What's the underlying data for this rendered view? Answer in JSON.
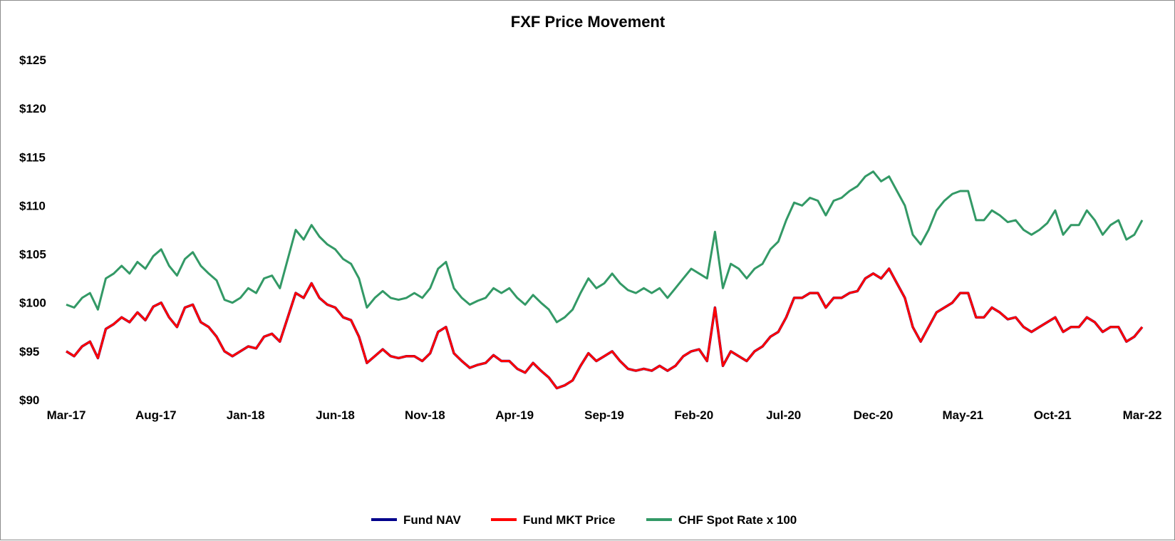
{
  "chart_data": {
    "type": "line",
    "title": "FXF Price Movement",
    "xlabel": "",
    "ylabel": "",
    "ylim": [
      90,
      125
    ],
    "y_ticks": [
      {
        "value": 125,
        "label": "$125"
      },
      {
        "value": 120,
        "label": "$120"
      },
      {
        "value": 115,
        "label": "$115"
      },
      {
        "value": 110,
        "label": "$110"
      },
      {
        "value": 105,
        "label": "$105"
      },
      {
        "value": 100,
        "label": "$100"
      },
      {
        "value": 95,
        "label": "$95"
      },
      {
        "value": 90,
        "label": "$90"
      }
    ],
    "x_ticks": [
      "Mar-17",
      "Aug-17",
      "Jan-18",
      "Jun-18",
      "Nov-18",
      "Apr-19",
      "Sep-19",
      "Feb-20",
      "Jul-20",
      "Dec-20",
      "May-21",
      "Oct-21",
      "Mar-22"
    ],
    "grid": false,
    "legend_position": "bottom",
    "series": [
      {
        "name": "Fund NAV",
        "color": "#00008b",
        "values": [
          95.0,
          94.5,
          95.5,
          96.0,
          94.3,
          97.3,
          97.8,
          98.5,
          98.0,
          99.0,
          98.2,
          99.6,
          100.0,
          98.5,
          97.5,
          99.5,
          99.8,
          98.0,
          97.5,
          96.5,
          95.0,
          94.5,
          95.0,
          95.5,
          95.3,
          96.5,
          96.8,
          96.0,
          98.5,
          101.0,
          100.5,
          102.0,
          100.5,
          99.8,
          99.5,
          98.5,
          98.2,
          96.5,
          93.8,
          94.5,
          95.2,
          94.5,
          94.3,
          94.5,
          94.5,
          94.0,
          94.8,
          97.0,
          97.5,
          94.8,
          94.0,
          93.3,
          93.6,
          93.8,
          94.6,
          94.0,
          94.0,
          93.2,
          92.8,
          93.8,
          93.0,
          92.3,
          91.2,
          91.5,
          92.0,
          93.5,
          94.8,
          94.0,
          94.5,
          95.0,
          94.0,
          93.2,
          93.0,
          93.2,
          93.0,
          93.5,
          93.0,
          93.5,
          94.5,
          95.0,
          95.2,
          94.0,
          99.5,
          93.5,
          95.0,
          94.5,
          94.0,
          95.0,
          95.5,
          96.5,
          97.0,
          98.5,
          100.5,
          100.5,
          101.0,
          101.0,
          99.5,
          100.5,
          100.5,
          101.0,
          101.2,
          102.5,
          103.0,
          102.5,
          103.5,
          102.0,
          100.5,
          97.5,
          96.0,
          97.5,
          99.0,
          99.5,
          100.0,
          101.0,
          101.0,
          98.5,
          98.5,
          99.5,
          99.0,
          98.3,
          98.5,
          97.5,
          97.0,
          97.5,
          98.0,
          98.5,
          97.0,
          97.5,
          97.5,
          98.5,
          98.0,
          97.0,
          97.5,
          97.5,
          96.0,
          96.5,
          97.5
        ]
      },
      {
        "name": "Fund MKT Price",
        "color": "#ff0000",
        "values": [
          95.0,
          94.5,
          95.5,
          96.0,
          94.3,
          97.3,
          97.8,
          98.5,
          98.0,
          99.0,
          98.2,
          99.6,
          100.0,
          98.5,
          97.5,
          99.5,
          99.8,
          98.0,
          97.5,
          96.5,
          95.0,
          94.5,
          95.0,
          95.5,
          95.3,
          96.5,
          96.8,
          96.0,
          98.5,
          101.0,
          100.5,
          102.0,
          100.5,
          99.8,
          99.5,
          98.5,
          98.2,
          96.5,
          93.8,
          94.5,
          95.2,
          94.5,
          94.3,
          94.5,
          94.5,
          94.0,
          94.8,
          97.0,
          97.5,
          94.8,
          94.0,
          93.3,
          93.6,
          93.8,
          94.6,
          94.0,
          94.0,
          93.2,
          92.8,
          93.8,
          93.0,
          92.3,
          91.2,
          91.5,
          92.0,
          93.5,
          94.8,
          94.0,
          94.5,
          95.0,
          94.0,
          93.2,
          93.0,
          93.2,
          93.0,
          93.5,
          93.0,
          93.5,
          94.5,
          95.0,
          95.2,
          94.0,
          99.5,
          93.5,
          95.0,
          94.5,
          94.0,
          95.0,
          95.5,
          96.5,
          97.0,
          98.5,
          100.5,
          100.5,
          101.0,
          101.0,
          99.5,
          100.5,
          100.5,
          101.0,
          101.2,
          102.5,
          103.0,
          102.5,
          103.5,
          102.0,
          100.5,
          97.5,
          96.0,
          97.5,
          99.0,
          99.5,
          100.0,
          101.0,
          101.0,
          98.5,
          98.5,
          99.5,
          99.0,
          98.3,
          98.5,
          97.5,
          97.0,
          97.5,
          98.0,
          98.5,
          97.0,
          97.5,
          97.5,
          98.5,
          98.0,
          97.0,
          97.5,
          97.5,
          96.0,
          96.5,
          97.5
        ]
      },
      {
        "name": "CHF Spot Rate x 100",
        "color": "#339966",
        "values": [
          99.8,
          99.5,
          100.5,
          101.0,
          99.3,
          102.5,
          103.0,
          103.8,
          103.0,
          104.2,
          103.5,
          104.8,
          105.5,
          103.8,
          102.8,
          104.5,
          105.2,
          103.8,
          103.0,
          102.3,
          100.3,
          100.0,
          100.5,
          101.5,
          101.0,
          102.5,
          102.8,
          101.5,
          104.5,
          107.5,
          106.5,
          108.0,
          106.8,
          106.0,
          105.5,
          104.5,
          104.0,
          102.5,
          99.5,
          100.5,
          101.2,
          100.5,
          100.3,
          100.5,
          101.0,
          100.5,
          101.5,
          103.5,
          104.2,
          101.5,
          100.5,
          99.8,
          100.2,
          100.5,
          101.5,
          101.0,
          101.5,
          100.5,
          99.8,
          100.8,
          100.0,
          99.3,
          98.0,
          98.5,
          99.3,
          101.0,
          102.5,
          101.5,
          102.0,
          103.0,
          102.0,
          101.3,
          101.0,
          101.5,
          101.0,
          101.5,
          100.5,
          101.5,
          102.5,
          103.5,
          103.0,
          102.5,
          107.3,
          101.5,
          104.0,
          103.5,
          102.5,
          103.5,
          104.0,
          105.5,
          106.3,
          108.5,
          110.3,
          110.0,
          110.8,
          110.5,
          109.0,
          110.5,
          110.8,
          111.5,
          112.0,
          113.0,
          113.5,
          112.5,
          113.0,
          111.5,
          110.0,
          107.0,
          106.0,
          107.5,
          109.5,
          110.5,
          111.2,
          111.5,
          111.5,
          108.5,
          108.5,
          109.5,
          109.0,
          108.3,
          108.5,
          107.5,
          107.0,
          107.5,
          108.2,
          109.5,
          107.0,
          108.0,
          108.0,
          109.5,
          108.5,
          107.0,
          108.0,
          108.5,
          106.5,
          107.0,
          108.5
        ]
      }
    ]
  }
}
